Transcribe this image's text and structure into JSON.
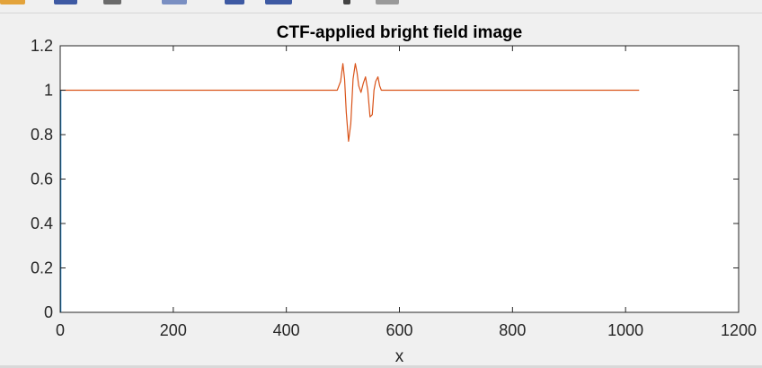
{
  "toolbar": {
    "buttons": [
      {
        "icon": "insert-legend-icon",
        "color": "#e3a33b"
      },
      {
        "icon": "insert-colorbar-icon",
        "color": "#3e5aa3"
      },
      {
        "icon": "brush-icon",
        "color": "#6b6b6b"
      },
      {
        "icon": "link-plot-icon",
        "color": "#7a8fc2"
      },
      {
        "icon": "save-icon",
        "color": "#3e5aa3"
      },
      {
        "icon": "print-icon",
        "color": "#3e5aa3"
      },
      {
        "icon": "data-cursor-icon",
        "color": "#444444"
      },
      {
        "icon": "edit-plot-icon",
        "color": "#9a9a9a"
      }
    ]
  },
  "chart_data": {
    "type": "line",
    "title": "CTF-applied bright field image",
    "xlabel": "x",
    "ylabel": "",
    "xlim": [
      0,
      1200
    ],
    "ylim": [
      0,
      1.2
    ],
    "xticks": [
      0,
      200,
      400,
      600,
      800,
      1000,
      1200
    ],
    "yticks": [
      0,
      0.2,
      0.4,
      0.6,
      0.8,
      1,
      1.2
    ],
    "xtick_labels": [
      "0",
      "200",
      "400",
      "600",
      "800",
      "1000",
      "1200"
    ],
    "ytick_labels": [
      "0",
      "0.2",
      "0.4",
      "0.6",
      "0.8",
      "1",
      "1.2"
    ],
    "grid": false,
    "series": [
      {
        "color": "#0072bd",
        "x": [
          1,
          1
        ],
        "y": [
          0,
          1
        ]
      },
      {
        "color": "#d95319",
        "x": [
          1,
          490,
          496,
          500,
          503,
          506,
          510,
          514,
          518,
          522,
          525,
          528,
          532,
          536,
          540,
          544,
          548,
          552,
          555,
          558,
          562,
          565,
          568,
          572,
          580,
          1024
        ],
        "y": [
          1.0,
          1.0,
          1.04,
          1.12,
          1.05,
          0.9,
          0.77,
          0.85,
          1.05,
          1.12,
          1.08,
          1.02,
          0.99,
          1.03,
          1.06,
          1.0,
          0.88,
          0.89,
          1.0,
          1.04,
          1.06,
          1.02,
          1.0,
          1.0,
          1.0,
          1.0
        ]
      }
    ]
  }
}
